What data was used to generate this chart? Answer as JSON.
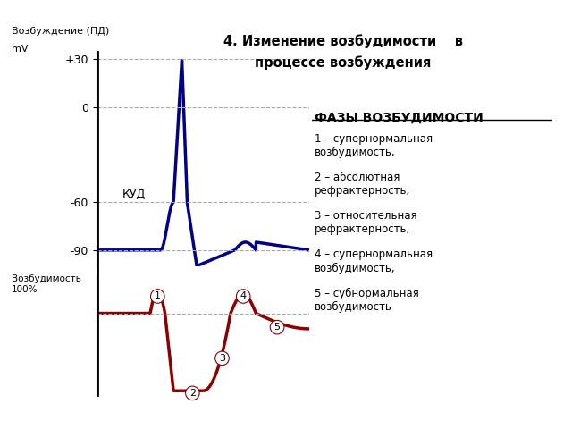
{
  "title_line1": "4. Изменение возбудимости    в",
  "title_line2": "процессе возбуждения",
  "left_label_top": "Возбуждение (ПД)",
  "left_label_mv": "mV",
  "kud_label": "КУД",
  "ytick_labels": [
    "+30",
    "0",
    "-60",
    "-90"
  ],
  "ytick_values": [
    30,
    0,
    -60,
    -90
  ],
  "grid_color": "#aaaaaa",
  "ax_color": "#000000",
  "blue_color": "#00008B",
  "red_color": "#8B0000",
  "phases_title": "ФАЗЫ ВОЗБУДИМОСТИ",
  "phases": [
    "1 – супернормальная\nвозбудимость,",
    "2 – абсолютная\nрефрактерность,",
    "3 – относительная\nрефрактерность,",
    "4 – супернормальная\nвозбудимость,",
    "5 – субнормальная\nвозбудимость"
  ],
  "background": "#ffffff"
}
